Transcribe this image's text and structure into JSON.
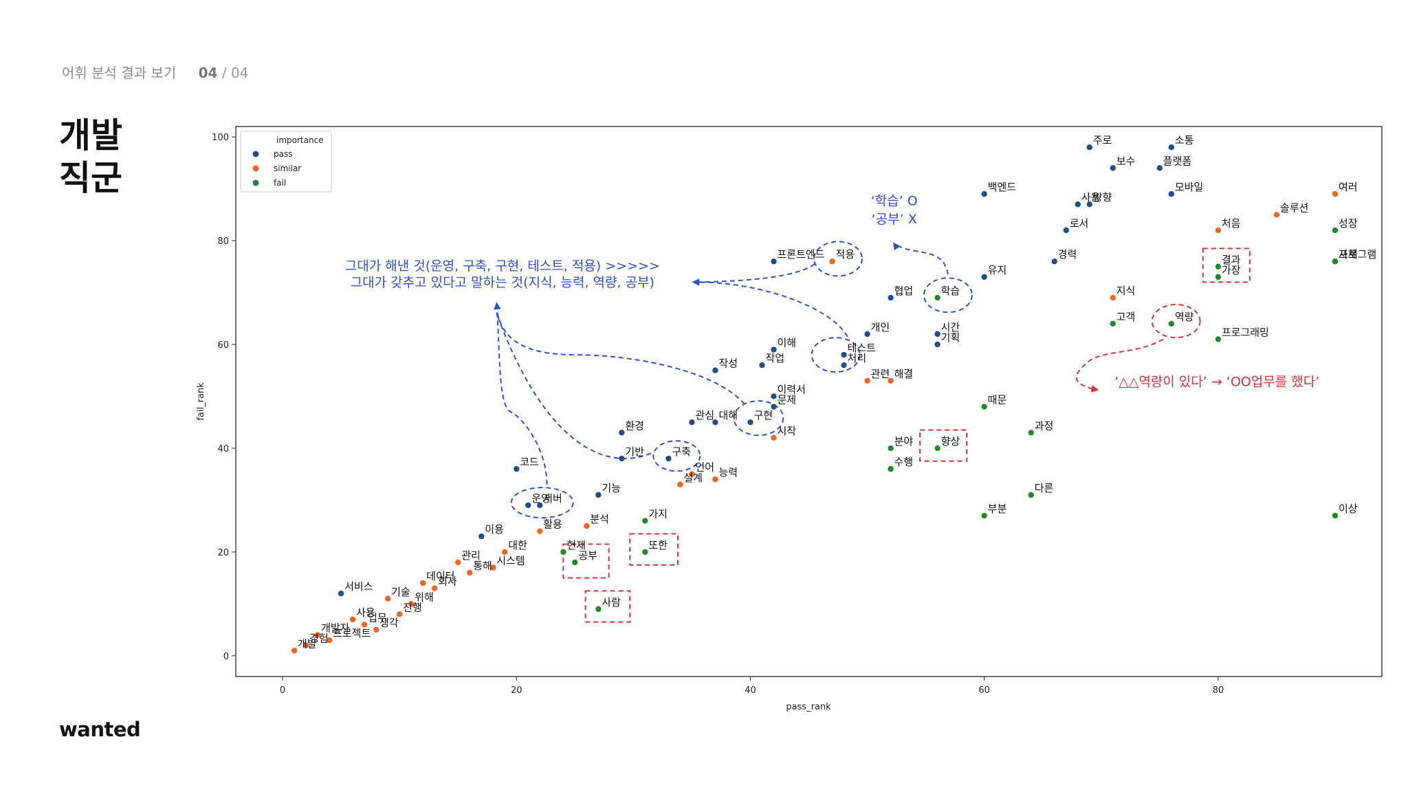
{
  "header": {
    "section": "어휘 분석 결과 보기",
    "page_current": "04",
    "page_sep": "/",
    "page_total": "04"
  },
  "title_lines": [
    "개발",
    "직군"
  ],
  "brand": "wanted",
  "colors": {
    "pass": "#1f4e8c",
    "similar": "#f2641c",
    "fail": "#1e8a2a",
    "note_blue": "#2b4fd4",
    "note_red": "#d9303c"
  },
  "chart_data": {
    "type": "scatter",
    "xlabel": "pass_rank",
    "ylabel": "fail_rank",
    "xlim": [
      -4,
      94
    ],
    "ylim": [
      -4,
      102
    ],
    "xticks": [
      0,
      20,
      40,
      60,
      80
    ],
    "yticks": [
      0,
      20,
      40,
      60,
      80,
      100
    ],
    "legend": {
      "title": "importance",
      "position": "top-left",
      "entries": [
        "pass",
        "similar",
        "fail"
      ]
    },
    "series": [
      {
        "name": "pass",
        "points": [
          {
            "label": "주로",
            "x": 69,
            "y": 98
          },
          {
            "label": "소통",
            "x": 76,
            "y": 98
          },
          {
            "label": "보수",
            "x": 71,
            "y": 94
          },
          {
            "label": "플랫폼",
            "x": 75,
            "y": 94
          },
          {
            "label": "백엔드",
            "x": 60,
            "y": 89
          },
          {
            "label": "모바일",
            "x": 76,
            "y": 89
          },
          {
            "label": "사용",
            "x": 68,
            "y": 87
          },
          {
            "label": "방향",
            "x": 69,
            "y": 87
          },
          {
            "label": "로서",
            "x": 67,
            "y": 82
          },
          {
            "label": "경력",
            "x": 66,
            "y": 76
          },
          {
            "label": "프론트엔드",
            "x": 42,
            "y": 76
          },
          {
            "label": "유지",
            "x": 60,
            "y": 73
          },
          {
            "label": "협업",
            "x": 52,
            "y": 69
          },
          {
            "label": "개인",
            "x": 50,
            "y": 62
          },
          {
            "label": "시간",
            "x": 56,
            "y": 62
          },
          {
            "label": "기획",
            "x": 56,
            "y": 60
          },
          {
            "label": "테스트",
            "x": 48,
            "y": 58
          },
          {
            "label": "처리",
            "x": 48,
            "y": 56
          },
          {
            "label": "이해",
            "x": 42,
            "y": 59
          },
          {
            "label": "작업",
            "x": 41,
            "y": 56
          },
          {
            "label": "작성",
            "x": 37,
            "y": 55
          },
          {
            "label": "이력서",
            "x": 42,
            "y": 50
          },
          {
            "label": "문제",
            "x": 42,
            "y": 48
          },
          {
            "label": "구현",
            "x": 40,
            "y": 45
          },
          {
            "label": "관심",
            "x": 35,
            "y": 45
          },
          {
            "label": "대해",
            "x": 37,
            "y": 45
          },
          {
            "label": "환경",
            "x": 29,
            "y": 43
          },
          {
            "label": "기반",
            "x": 29,
            "y": 38
          },
          {
            "label": "구축",
            "x": 33,
            "y": 38
          },
          {
            "label": "코드",
            "x": 20,
            "y": 36
          },
          {
            "label": "기능",
            "x": 27,
            "y": 31
          },
          {
            "label": "운영",
            "x": 21,
            "y": 29
          },
          {
            "label": "서버",
            "x": 22,
            "y": 29
          },
          {
            "label": "이용",
            "x": 17,
            "y": 23
          },
          {
            "label": "서비스",
            "x": 5,
            "y": 12
          }
        ]
      },
      {
        "name": "similar",
        "points": [
          {
            "label": "여러",
            "x": 90,
            "y": 89
          },
          {
            "label": "솔루션",
            "x": 85,
            "y": 85
          },
          {
            "label": "처음",
            "x": 80,
            "y": 82
          },
          {
            "label": "지식",
            "x": 71,
            "y": 69
          },
          {
            "label": "적용",
            "x": 47,
            "y": 76
          },
          {
            "label": "관련",
            "x": 50,
            "y": 53
          },
          {
            "label": "해결",
            "x": 52,
            "y": 53
          },
          {
            "label": "시작",
            "x": 42,
            "y": 42
          },
          {
            "label": "언어",
            "x": 35,
            "y": 35
          },
          {
            "label": "설계",
            "x": 34,
            "y": 33
          },
          {
            "label": "능력",
            "x": 37,
            "y": 34
          },
          {
            "label": "분석",
            "x": 26,
            "y": 25
          },
          {
            "label": "활용",
            "x": 22,
            "y": 24
          },
          {
            "label": "대한",
            "x": 19,
            "y": 20
          },
          {
            "label": "시스템",
            "x": 18,
            "y": 17
          },
          {
            "label": "관리",
            "x": 15,
            "y": 18
          },
          {
            "label": "통해",
            "x": 16,
            "y": 16
          },
          {
            "label": "데이터",
            "x": 12,
            "y": 14
          },
          {
            "label": "회사",
            "x": 13,
            "y": 13
          },
          {
            "label": "기술",
            "x": 9,
            "y": 11
          },
          {
            "label": "위해",
            "x": 11,
            "y": 10
          },
          {
            "label": "진행",
            "x": 10,
            "y": 8
          },
          {
            "label": "사용",
            "x": 6,
            "y": 7
          },
          {
            "label": "업무",
            "x": 7,
            "y": 6
          },
          {
            "label": "생각",
            "x": 8,
            "y": 5
          },
          {
            "label": "개발자",
            "x": 3,
            "y": 4
          },
          {
            "label": "프로젝트",
            "x": 4,
            "y": 3
          },
          {
            "label": "경험",
            "x": 2,
            "y": 2
          },
          {
            "label": "개발",
            "x": 1,
            "y": 1
          }
        ]
      },
      {
        "name": "fail",
        "points": [
          {
            "label": "성장",
            "x": 90,
            "y": 82
          },
          {
            "label": "프로그램",
            "x": 90,
            "y": 76
          },
          {
            "label": "자체",
            "x": 90,
            "y": 76
          },
          {
            "label": "결과",
            "x": 80,
            "y": 75
          },
          {
            "label": "가장",
            "x": 80,
            "y": 73
          },
          {
            "label": "학습",
            "x": 56,
            "y": 69
          },
          {
            "label": "고객",
            "x": 71,
            "y": 64
          },
          {
            "label": "역량",
            "x": 76,
            "y": 64
          },
          {
            "label": "프로그래밍",
            "x": 80,
            "y": 61
          },
          {
            "label": "때문",
            "x": 60,
            "y": 48
          },
          {
            "label": "과정",
            "x": 64,
            "y": 43
          },
          {
            "label": "분야",
            "x": 52,
            "y": 40
          },
          {
            "label": "향상",
            "x": 56,
            "y": 40
          },
          {
            "label": "수행",
            "x": 52,
            "y": 36
          },
          {
            "label": "다른",
            "x": 64,
            "y": 31
          },
          {
            "label": "부분",
            "x": 60,
            "y": 27
          },
          {
            "label": "이상",
            "x": 90,
            "y": 27
          },
          {
            "label": "가지",
            "x": 31,
            "y": 26
          },
          {
            "label": "현재",
            "x": 24,
            "y": 20
          },
          {
            "label": "공부",
            "x": 25,
            "y": 18
          },
          {
            "label": "또한",
            "x": 31,
            "y": 20
          },
          {
            "label": "사람",
            "x": 27,
            "y": 9
          }
        ]
      }
    ],
    "annotations": [
      {
        "text": "그대가 해낸 것(운영, 구축, 구현, 테스트, 적용) >>>>>",
        "color": "note_blue"
      },
      {
        "text": "그대가 갖추고 있다고 말하는 것(지식, 능력, 역량, 공부)",
        "color": "note_blue"
      },
      {
        "text": "‘학습’ O",
        "color": "note_blue"
      },
      {
        "text": "‘공부’ X",
        "color": "note_blue"
      },
      {
        "text": "‘△△역량이 있다’ → ‘OO업무를 했다’",
        "color": "note_red"
      }
    ]
  }
}
